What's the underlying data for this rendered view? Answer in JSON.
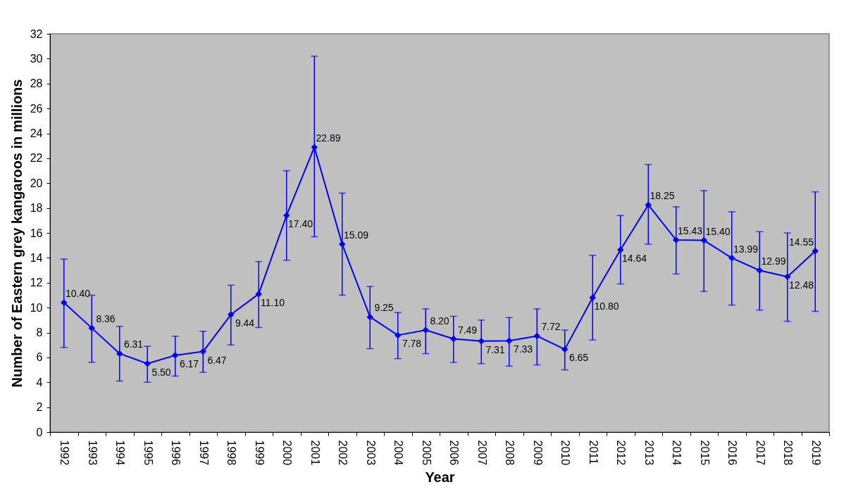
{
  "chart_data": {
    "type": "line",
    "xlabel": "Year",
    "ylabel": "Number of Eastern grey kangaroos in millions",
    "categories": [
      "1992",
      "1993",
      "1994",
      "1995",
      "1996",
      "1997",
      "1998",
      "1999",
      "2000",
      "2001",
      "2002",
      "2003",
      "2004",
      "2005",
      "2006",
      "2007",
      "2008",
      "2009",
      "2010",
      "2011",
      "2012",
      "2013",
      "2014",
      "2015",
      "2016",
      "2017",
      "2018",
      "2019"
    ],
    "series": [
      {
        "color": "#0000ff",
        "values": [
          10.4,
          8.36,
          6.31,
          5.5,
          6.17,
          6.47,
          9.44,
          11.1,
          17.4,
          22.89,
          15.09,
          9.25,
          7.78,
          8.2,
          7.49,
          7.31,
          7.33,
          7.72,
          6.65,
          10.8,
          14.64,
          18.25,
          15.43,
          15.4,
          13.99,
          12.99,
          12.48,
          14.55
        ],
        "value_labels": [
          "10.40",
          "8.36",
          "6.31",
          "5.50",
          "6.17",
          "6.47",
          "9.44",
          "11.10",
          "17.40",
          "22.89",
          "15.09",
          "9.25",
          "7.78",
          "8.20",
          "7.49",
          "7.31",
          "7.33",
          "7.72",
          "6.65",
          "10.80",
          "14.64",
          "18.25",
          "15.43",
          "15.40",
          "13.99",
          "12.99",
          "12.48",
          "14.55"
        ],
        "errors": [
          [
            6.8,
            13.9
          ],
          [
            5.6,
            11.0
          ],
          [
            4.1,
            8.5
          ],
          [
            4.0,
            6.9
          ],
          [
            4.5,
            7.7
          ],
          [
            4.8,
            8.1
          ],
          [
            7.0,
            11.8
          ],
          [
            8.4,
            13.7
          ],
          [
            13.8,
            21.0
          ],
          [
            15.7,
            30.2
          ],
          [
            11.0,
            19.2
          ],
          [
            6.7,
            11.7
          ],
          [
            5.9,
            9.6
          ],
          [
            6.3,
            9.9
          ],
          [
            5.6,
            9.3
          ],
          [
            5.5,
            9.0
          ],
          [
            5.3,
            9.2
          ],
          [
            5.4,
            9.9
          ],
          [
            5.0,
            8.2
          ],
          [
            7.4,
            14.2
          ],
          [
            11.9,
            17.4
          ],
          [
            15.1,
            21.5
          ],
          [
            12.7,
            18.1
          ],
          [
            11.3,
            19.4
          ],
          [
            10.2,
            17.7
          ],
          [
            9.8,
            16.1
          ],
          [
            8.9,
            16.0
          ],
          [
            9.7,
            19.3
          ]
        ]
      }
    ],
    "ylim": [
      0,
      32
    ],
    "yticks": [
      0,
      2,
      4,
      6,
      8,
      10,
      12,
      14,
      16,
      18,
      20,
      22,
      24,
      26,
      28,
      30,
      32
    ],
    "grid": false,
    "marker": "diamond",
    "line_style": "solid"
  }
}
